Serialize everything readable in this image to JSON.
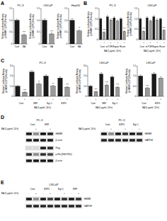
{
  "panel_labels": [
    "A",
    "B",
    "C",
    "D",
    "E"
  ],
  "chart_data": [
    {
      "type": "bar",
      "title": "PC-3",
      "y_label": [
        "Relative Luciferase Activity",
        "(pHMMR-1(SP1)/Renilla)"
      ],
      "categories": [
        "Cont",
        "BA"
      ],
      "values": [
        1,
        0.38
      ],
      "errors": [
        0.05,
        0.04
      ],
      "annotations": [
        null,
        "***"
      ],
      "colors": [
        "#1a1a1a",
        "#9a9a9a"
      ],
      "ylim": [
        0,
        1.5
      ],
      "yticks": [
        0,
        0.5,
        {
          "value": 1,
          "label": "1.0"
        },
        1.5
      ]
    },
    {
      "type": "bar",
      "title": "LNCaP",
      "y_label": [
        "Relative Luciferase Activity",
        "(pHMMR-1(SP1)/Renilla)"
      ],
      "categories": [
        "Cont",
        "BA"
      ],
      "values": [
        1,
        0.42
      ],
      "errors": [
        0.06,
        0.04
      ],
      "annotations": [
        null,
        "***"
      ],
      "colors": [
        "#1a1a1a",
        "#9a9a9a"
      ],
      "ylim": [
        0,
        1.5
      ],
      "yticks": [
        0,
        0.5,
        {
          "value": 1,
          "label": "1.0"
        },
        1.5
      ]
    },
    {
      "type": "bar",
      "title": "HepG2",
      "y_label": [
        "Relative Luciferase Activity",
        "(pHMMR-1(SP1)/Renilla)"
      ],
      "categories": [
        "Cont",
        "BA"
      ],
      "values": [
        1,
        0.55
      ],
      "errors": [
        0.07,
        0.05
      ],
      "annotations": [
        null,
        "**"
      ],
      "colors": [
        "#1a1a1a",
        "#9a9a9a"
      ],
      "ylim": [
        0,
        1.5
      ],
      "yticks": [
        0,
        0.5,
        {
          "value": 1,
          "label": "1.0"
        },
        1.5
      ]
    },
    {
      "type": "bar",
      "title": "PC-3",
      "y_label": [
        "Relative Luciferase Activity",
        "(pHMMR-1(SP1)/Renilla)"
      ],
      "x_label": "BA (5 μg/ml, 24 h)",
      "groups": [
        "Cont",
        "mTOR",
        "Raptor",
        "Rictor"
      ],
      "categories": [
        "-",
        "+",
        "-",
        "+",
        "-",
        "+",
        "-",
        "+"
      ],
      "values": [
        1,
        0.35,
        1.1,
        0.95,
        1.05,
        0.9,
        1,
        0.4
      ],
      "errors": [
        0.05,
        0.04,
        0.08,
        0.07,
        0.06,
        0.06,
        0.05,
        0.04
      ],
      "annotations": [
        null,
        "***",
        null,
        null,
        null,
        null,
        null,
        "***"
      ],
      "colors": [
        "#1a1a1a",
        "#9a9a9a",
        "#1a1a1a",
        "#9a9a9a",
        "#1a1a1a",
        "#9a9a9a",
        "#1a1a1a",
        "#9a9a9a"
      ],
      "ylim": [
        0,
        1.5
      ],
      "yticks": [
        0,
        0.5,
        {
          "value": 1,
          "label": "1.0"
        },
        1.5
      ]
    },
    {
      "type": "bar",
      "title": "LNCaP",
      "y_label": [
        "Relative Luciferase Activity",
        "(pHMMR-1(SP1)/Renilla)"
      ],
      "x_label": "BA (5 μg/ml, 24 h)",
      "groups": [
        "Cont",
        "mTOR",
        "Raptor",
        "Rictor"
      ],
      "categories": [
        "-",
        "+",
        "-",
        "+",
        "-",
        "+",
        "-",
        "+"
      ],
      "values": [
        1,
        0.4,
        1.05,
        0.9,
        1.1,
        0.95,
        1,
        0.45
      ],
      "errors": [
        0.05,
        0.04,
        0.07,
        0.06,
        0.07,
        0.06,
        0.05,
        0.04
      ],
      "annotations": [
        null,
        "***",
        null,
        null,
        null,
        null,
        null,
        "***"
      ],
      "colors": [
        "#1a1a1a",
        "#9a9a9a",
        "#1a1a1a",
        "#9a9a9a",
        "#1a1a1a",
        "#9a9a9a",
        "#1a1a1a",
        "#9a9a9a"
      ],
      "ylim": [
        0,
        1.5
      ],
      "yticks": [
        0,
        0.5,
        {
          "value": 1,
          "label": "1.0"
        },
        1.5
      ]
    },
    {
      "type": "bar",
      "title": "PC-3",
      "y_label": [
        "Relative Luciferase Activity",
        "(pHMMR-1(SP1)/Renilla)"
      ],
      "x_label": "BA (5 μg/ml, 24 h)",
      "groups": [
        "Cont",
        "SRF",
        "Egr-1",
        "E2F3"
      ],
      "categories": [
        "-",
        "+",
        "-",
        "+",
        "-",
        "+",
        "-",
        "+"
      ],
      "values": [
        1,
        0.4,
        2.4,
        1.2,
        2,
        1,
        1.8,
        0.9
      ],
      "errors": [
        0.06,
        0.04,
        0.15,
        0.1,
        0.12,
        0.08,
        0.1,
        0.07
      ],
      "annotations": [
        null,
        "***",
        null,
        "**",
        null,
        "**",
        null,
        "***"
      ],
      "colors": [
        "#1a1a1a",
        "#9a9a9a",
        "#1a1a1a",
        "#9a9a9a",
        "#1a1a1a",
        "#9a9a9a",
        "#1a1a1a",
        "#9a9a9a"
      ],
      "ylim": [
        0,
        3
      ],
      "yticks": [
        0,
        {
          "value": 1,
          "label": "1.0"
        },
        {
          "value": 2,
          "label": "2.0"
        },
        {
          "value": 3,
          "label": "3.0"
        }
      ]
    },
    {
      "type": "bar",
      "title": "LNCaP",
      "y_label": [
        "Relative Luciferase Activity",
        "(pHMMR-1(SP1)/Renilla)"
      ],
      "x_label": "BA (5 μg/ml, 24 h)",
      "groups": [
        "Cont",
        "SRF",
        "Egr-1"
      ],
      "categories": [
        "-",
        "+",
        "-",
        "+",
        "-",
        "+"
      ],
      "values": [
        1,
        0.45,
        2.2,
        1.1,
        1.9,
        0.9
      ],
      "errors": [
        0.06,
        0.04,
        0.14,
        0.09,
        0.12,
        0.08
      ],
      "annotations": [
        null,
        "***",
        null,
        "***",
        null,
        "***"
      ],
      "colors": [
        "#1a1a1a",
        "#9a9a9a",
        "#1a1a1a",
        "#9a9a9a",
        "#1a1a1a",
        "#9a9a9a"
      ],
      "ylim": [
        0,
        3
      ],
      "yticks": [
        0,
        {
          "value": 1,
          "label": "1.0"
        },
        {
          "value": 2,
          "label": "2.0"
        },
        {
          "value": 3,
          "label": "3.0"
        }
      ]
    },
    {
      "type": "bar",
      "title": "LNCaP",
      "y_label": [
        "Relative Luciferase Activity",
        "(pHMMR-1(SP1)/Renilla)"
      ],
      "x_label": "BA (5 μg/ml, 24 h)",
      "groups": [
        "Cont",
        "E2F3"
      ],
      "categories": [
        "-",
        "+",
        "-",
        "+"
      ],
      "values": [
        1,
        0.4,
        1.1,
        0.9
      ],
      "errors": [
        0.05,
        0.04,
        0.07,
        0.06
      ],
      "annotations": [
        null,
        "***",
        null,
        null
      ],
      "colors": [
        "#1a1a1a",
        "#9a9a9a",
        "#1a1a1a",
        "#9a9a9a"
      ],
      "ylim": [
        0,
        1.5
      ],
      "yticks": [
        0,
        0.5,
        {
          "value": 1,
          "label": "1.0"
        },
        1.5
      ]
    }
  ],
  "blots": [
    {
      "title": "PC-3",
      "x_label": "BA (5 μg/ml, 24 h)",
      "groups": [
        "Cont",
        "SRF"
      ],
      "lanes": [
        "-",
        "+",
        "-",
        "+"
      ],
      "rows": [
        {
          "name": "HMMR",
          "intensity": [
            0.9,
            0.4,
            0.95,
            0.85
          ]
        },
        {
          "name": "β-actin",
          "intensity": [
            0.9,
            0.9,
            0.9,
            0.9
          ]
        },
        {
          "name": "Flag",
          "intensity": [
            0.05,
            0.05,
            0.9,
            0.85
          ]
        },
        {
          "name": "p-Rb (S807/811)",
          "intensity": [
            0.8,
            0.4,
            0.8,
            0.7
          ]
        },
        {
          "name": "β-actin",
          "intensity": [
            0.9,
            0.9,
            0.9,
            0.9
          ]
        }
      ]
    },
    {
      "title": "PC-3",
      "x_label": "BA (5 μg/ml, 24 h)",
      "groups": [
        "Cont",
        "E2F3",
        "Egr-1"
      ],
      "lanes": [
        "-",
        "+",
        "-",
        "+",
        "-",
        "+"
      ],
      "rows": [
        {
          "name": "HMMR",
          "intensity": [
            0.9,
            0.4,
            0.9,
            0.8,
            0.9,
            0.8
          ]
        },
        {
          "name": "GAPDH",
          "intensity": [
            0.85,
            0.85,
            0.85,
            0.85,
            0.85,
            0.85
          ]
        }
      ]
    },
    {
      "title": "LNCaP",
      "x_label": "BA (5 μg/ml, 24 h)",
      "groups": [
        "Cont",
        "E2F3",
        "Egr-1",
        "SRF"
      ],
      "lanes": [
        "-",
        "+",
        "-",
        "+",
        "-",
        "+",
        "-",
        "+"
      ],
      "rows": [
        {
          "name": "HMMR",
          "intensity": [
            0.9,
            0.4,
            0.9,
            0.75,
            0.9,
            0.8,
            0.9,
            0.8
          ]
        },
        {
          "name": "GAPDH",
          "intensity": [
            0.85,
            0.85,
            0.85,
            0.85,
            0.85,
            0.85,
            0.85,
            0.85
          ]
        }
      ]
    }
  ]
}
